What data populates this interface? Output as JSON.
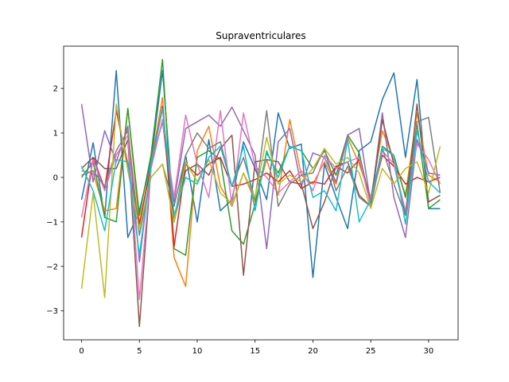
{
  "chart_data": {
    "type": "line",
    "title": "Supraventriculares",
    "xlabel": "",
    "ylabel": "",
    "xlim": [
      -1.55,
      32.55
    ],
    "ylim": [
      -3.65,
      2.95
    ],
    "xticks": [
      0,
      5,
      10,
      15,
      20,
      25,
      30
    ],
    "yticks": [
      -3,
      -2,
      -1,
      0,
      1,
      2
    ],
    "grid": false,
    "legend": "none",
    "x": [
      0,
      1,
      2,
      3,
      4,
      5,
      6,
      7,
      8,
      9,
      10,
      11,
      12,
      13,
      14,
      15,
      16,
      17,
      18,
      19,
      20,
      21,
      22,
      23,
      24,
      25,
      26,
      27,
      28,
      29,
      30,
      31
    ],
    "series": [
      {
        "color": "#1f77b4",
        "values": [
          -0.5,
          0.78,
          -0.9,
          2.4,
          -1.35,
          -0.75,
          0.35,
          2.4,
          -1.0,
          0.5,
          -1.0,
          0.85,
          -0.75,
          -0.5,
          0.8,
          0.2,
          -0.5,
          1.45,
          0.65,
          0.75,
          -2.25,
          0.3,
          -0.45,
          -1.15,
          0.6,
          0.8,
          1.75,
          2.35,
          0.45,
          2.2,
          -0.7,
          -0.7
        ]
      },
      {
        "color": "#ff7f0e",
        "values": [
          0.15,
          0.1,
          -0.75,
          -0.7,
          1.55,
          -1.05,
          0.3,
          1.8,
          -1.8,
          -2.45,
          0.6,
          1.15,
          -0.2,
          -0.65,
          0.1,
          -0.55,
          0.4,
          -0.4,
          1.3,
          0.05,
          -0.15,
          0.35,
          -0.15,
          0.9,
          0.3,
          -0.45,
          1.05,
          0.4,
          -0.4,
          1.45,
          0.05,
          -0.1
        ]
      },
      {
        "color": "#2ca02c",
        "values": [
          0.0,
          0.35,
          -0.9,
          -1.0,
          1.55,
          -0.85,
          0.5,
          2.65,
          -1.6,
          -1.75,
          0.45,
          0.6,
          0.4,
          -1.2,
          -1.5,
          -0.6,
          0.55,
          0.1,
          0.7,
          0.6,
          0.2,
          0.6,
          0.05,
          0.95,
          0.55,
          -0.6,
          0.7,
          0.5,
          -0.45,
          1.2,
          -0.7,
          -0.5
        ]
      },
      {
        "color": "#d62728",
        "values": [
          -1.35,
          0.45,
          -0.25,
          1.5,
          0.3,
          -1.05,
          0.25,
          1.6,
          -1.55,
          0.3,
          0.05,
          0.3,
          0.45,
          -0.2,
          -0.15,
          -0.05,
          0.1,
          -0.1,
          0.15,
          -0.25,
          -0.1,
          -0.15,
          0.25,
          0.1,
          0.4,
          -0.55,
          0.5,
          0.25,
          -0.15,
          0.0,
          -0.1,
          0.0
        ]
      },
      {
        "color": "#9467bd",
        "values": [
          1.65,
          -0.1,
          1.05,
          0.35,
          1.15,
          -1.9,
          0.3,
          1.25,
          -0.55,
          1.1,
          1.25,
          1.4,
          1.15,
          1.58,
          1.05,
          0.5,
          -1.6,
          0.8,
          1.1,
          -0.2,
          0.55,
          0.45,
          -0.1,
          0.95,
          1.1,
          -0.6,
          1.45,
          -0.45,
          -1.35,
          0.85,
          0.1,
          0.05
        ]
      },
      {
        "color": "#8c564b",
        "values": [
          0.2,
          0.45,
          0.2,
          0.2,
          0.85,
          -3.35,
          0.2,
          1.3,
          -1.0,
          0.15,
          0.3,
          0.05,
          0.65,
          0.95,
          -2.2,
          0.35,
          0.4,
          0.35,
          -0.1,
          -0.15,
          -1.15,
          -0.55,
          0.25,
          0.35,
          -0.4,
          -0.65,
          1.3,
          0.3,
          -0.85,
          1.65,
          -0.55,
          -0.4
        ]
      },
      {
        "color": "#e377c2",
        "values": [
          -0.9,
          0.4,
          -0.3,
          0.5,
          0.95,
          -2.75,
          0.2,
          1.3,
          -0.45,
          1.4,
          0.3,
          -0.45,
          1.5,
          -0.65,
          1.45,
          0.25,
          0.0,
          -0.35,
          -0.1,
          0.15,
          -0.3,
          0.5,
          0.2,
          0.35,
          0.45,
          -0.65,
          0.6,
          0.3,
          -0.75,
          0.75,
          0.4,
          -0.15
        ]
      },
      {
        "color": "#7f7f7f",
        "values": [
          0.05,
          0.15,
          -0.2,
          0.6,
          1.05,
          -1.3,
          0.0,
          0.3,
          -0.65,
          0.5,
          1.0,
          0.65,
          0.8,
          -0.2,
          0.45,
          -0.5,
          1.5,
          -0.65,
          -0.15,
          0.05,
          0.1,
          0.65,
          -0.3,
          0.25,
          -0.45,
          -0.65,
          0.65,
          -0.15,
          -0.85,
          1.25,
          1.35,
          -0.35
        ]
      },
      {
        "color": "#bcbd22",
        "values": [
          -2.5,
          -0.35,
          -2.7,
          1.65,
          0.15,
          -1.15,
          0.0,
          0.3,
          -1.0,
          0.35,
          -0.1,
          0.4,
          -0.35,
          -0.6,
          0.1,
          -0.45,
          0.9,
          -0.15,
          0.05,
          -0.1,
          0.2,
          0.65,
          0.3,
          0.45,
          0.1,
          -0.7,
          0.2,
          -0.15,
          0.2,
          0.35,
          -0.35,
          0.7
        ]
      },
      {
        "color": "#17becf",
        "values": [
          0.25,
          -0.3,
          -1.2,
          0.4,
          0.35,
          -1.75,
          0.25,
          1.55,
          -0.85,
          0.0,
          -0.15,
          0.45,
          0.7,
          -0.2,
          0.7,
          -0.75,
          0.6,
          0.0,
          0.7,
          0.6,
          -0.45,
          -0.3,
          -0.75,
          0.85,
          -1.0,
          -0.5,
          0.65,
          0.5,
          -1.05,
          1.05,
          -0.1,
          -0.35
        ]
      }
    ]
  }
}
